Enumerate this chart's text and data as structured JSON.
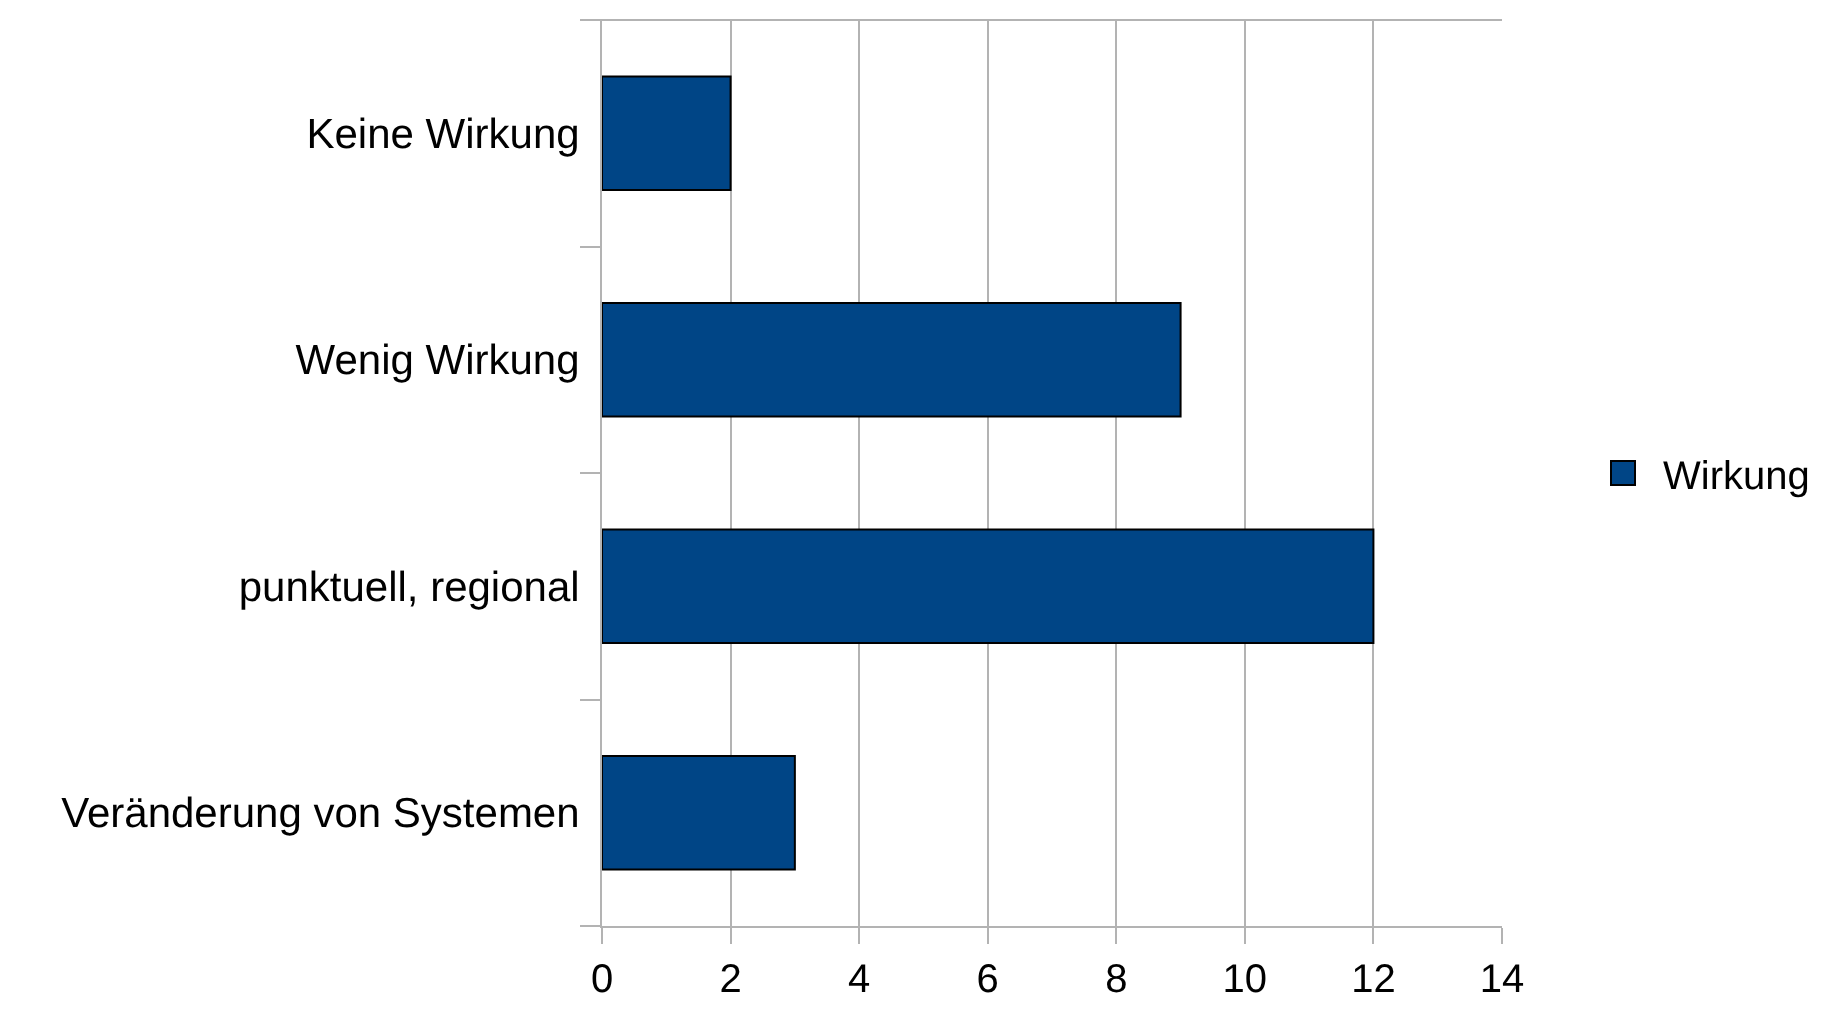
{
  "chart_data": {
    "type": "bar",
    "orientation": "horizontal",
    "categories": [
      "Keine Wirkung",
      "Wenig Wirkung",
      "punktuell, regional",
      "Veränderung von Systemen"
    ],
    "series": [
      {
        "name": "Wirkung",
        "color": "#004586",
        "values": [
          2,
          9,
          12,
          3
        ]
      }
    ],
    "xlim": [
      0,
      14
    ],
    "xticks": [
      0,
      2,
      4,
      6,
      8,
      10,
      12,
      14
    ],
    "grid": "x",
    "legend": "right"
  }
}
